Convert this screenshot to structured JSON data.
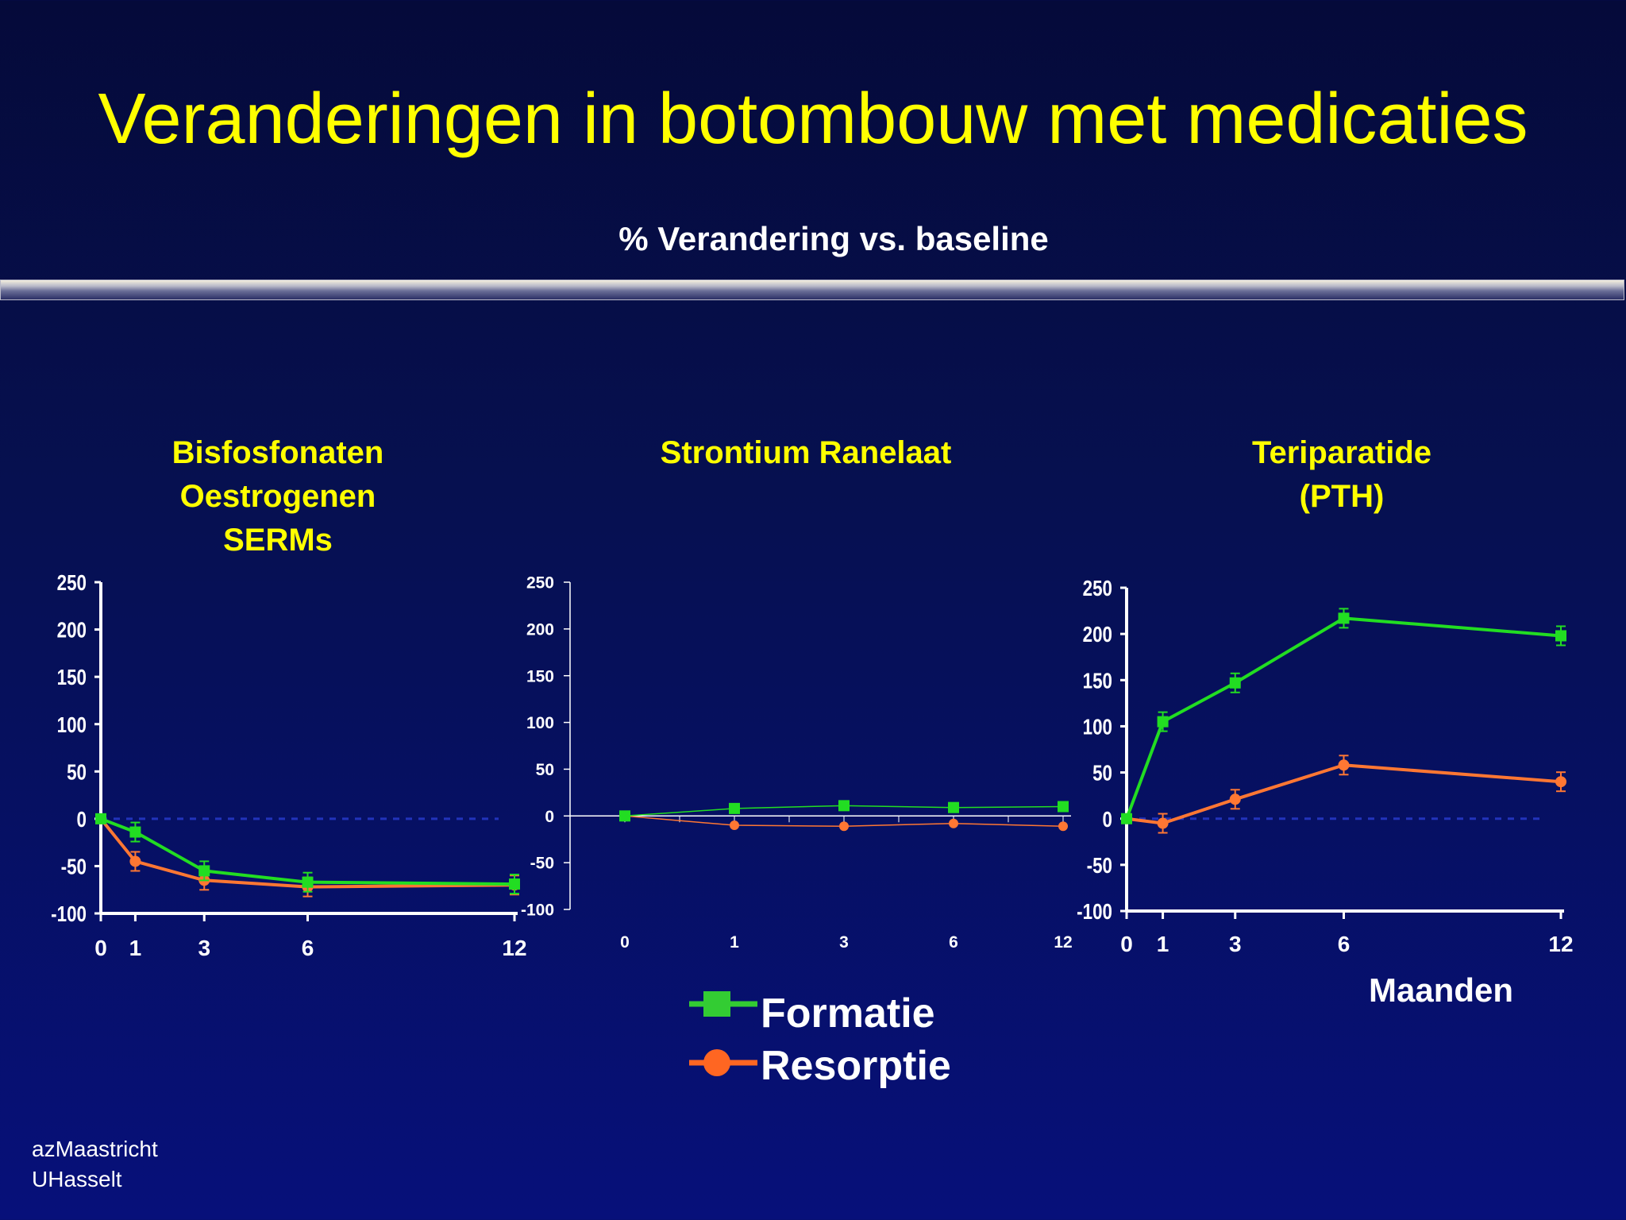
{
  "slide": {
    "title": "Veranderingen in botombouw met medicaties",
    "subtitle": "% Verandering vs. baseline",
    "unit_label": "Maanden",
    "footer_lines": [
      "azMaastricht",
      "UHasselt"
    ],
    "legend": [
      {
        "name": "Formatie",
        "color": "#22dd22",
        "marker": "square"
      },
      {
        "name": "Resorptie",
        "color": "#ff6622",
        "marker": "circle"
      }
    ]
  },
  "chart_data": [
    {
      "type": "line",
      "title_lines": [
        "Bisfosfonaten",
        "Oestrogenen",
        "SERMs"
      ],
      "x": [
        0,
        1,
        3,
        6,
        12
      ],
      "x_tick_labels": [
        "0",
        "1",
        "3",
        "6",
        "12"
      ],
      "y_tick_labels": [
        "250",
        "200",
        "150",
        "100",
        "50",
        "0",
        "-50",
        "-100"
      ],
      "ylim": [
        -100,
        250
      ],
      "series": [
        {
          "name": "Formatie",
          "color": "#22dd22",
          "values": [
            0,
            -14,
            -55,
            -67,
            -69
          ]
        },
        {
          "name": "Resorptie",
          "color": "#ff7733",
          "values": [
            0,
            -45,
            -65,
            -72,
            -70
          ]
        }
      ]
    },
    {
      "type": "line",
      "title_lines": [
        "Strontium Ranelaat"
      ],
      "x": [
        0,
        1,
        3,
        6,
        12
      ],
      "x_tick_labels": [
        "0",
        "1",
        "3",
        "6",
        "12"
      ],
      "y_tick_labels": [
        "250",
        "200",
        "150",
        "100",
        "50",
        "0",
        "-50",
        "-100"
      ],
      "ylim": [
        -100,
        250
      ],
      "series": [
        {
          "name": "Formatie",
          "color": "#22dd22",
          "values": [
            0,
            8,
            11,
            9,
            10
          ]
        },
        {
          "name": "Resorptie",
          "color": "#ff7733",
          "values": [
            0,
            -10,
            -11,
            -8,
            -11
          ]
        }
      ]
    },
    {
      "type": "line",
      "title_lines": [
        "Teriparatide",
        "(PTH)"
      ],
      "x": [
        0,
        1,
        3,
        6,
        12
      ],
      "x_tick_labels": [
        "0",
        "1",
        "3",
        "6",
        "12"
      ],
      "y_tick_labels": [
        "250",
        "200",
        "150",
        "100",
        "50",
        "0",
        "-50",
        "-100"
      ],
      "ylim": [
        -100,
        250
      ],
      "series": [
        {
          "name": "Formatie",
          "color": "#22dd22",
          "values": [
            0,
            105,
            147,
            217,
            198
          ]
        },
        {
          "name": "Resorptie",
          "color": "#ff7733",
          "values": [
            0,
            -5,
            21,
            58,
            40
          ]
        }
      ]
    }
  ]
}
